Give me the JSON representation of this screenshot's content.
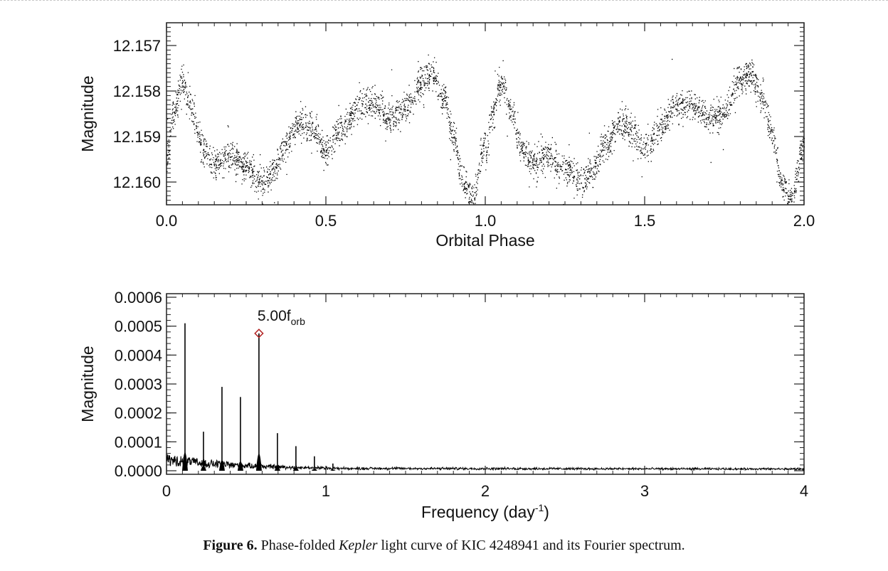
{
  "chart_data": [
    {
      "type": "scatter",
      "title": "",
      "xlabel": "Orbital Phase",
      "ylabel": "Magnitude",
      "xlim": [
        0.0,
        2.0
      ],
      "ylim": [
        12.1605,
        12.1565
      ],
      "y_inverted": true,
      "xticks": [
        "0.0",
        "0.5",
        "1.0",
        "1.5",
        "2.0"
      ],
      "yticks": [
        "12.157",
        "12.158",
        "12.159",
        "12.160"
      ],
      "grid": false,
      "legend": "none",
      "series": [
        {
          "marker_color": "#000000",
          "x": [
            0.0,
            0.02,
            0.05,
            0.08,
            0.11,
            0.15,
            0.2,
            0.25,
            0.3,
            0.34,
            0.38,
            0.42,
            0.45,
            0.5,
            0.55,
            0.6,
            0.65,
            0.7,
            0.75,
            0.8,
            0.83,
            0.87,
            0.9,
            0.93,
            0.96,
            0.99,
            1.0
          ],
          "y": [
            12.1595,
            12.1585,
            12.1578,
            12.1584,
            12.1592,
            12.1596,
            12.1594,
            12.1597,
            12.16,
            12.1597,
            12.1591,
            12.1587,
            12.1588,
            12.1593,
            12.1588,
            12.1583,
            12.1583,
            12.1586,
            12.1584,
            12.1578,
            12.1576,
            12.1581,
            12.159,
            12.16,
            12.1604,
            12.1594,
            12.159
          ]
        }
      ]
    },
    {
      "type": "line",
      "title": "",
      "xlabel": "Frequency (day",
      "xlabel_sup": "-1",
      "xlabel_end": ")",
      "ylabel": "Magnitude",
      "xlim": [
        0,
        4
      ],
      "ylim": [
        0,
        0.0006
      ],
      "xticks": [
        "0",
        "1",
        "2",
        "3",
        "4"
      ],
      "yticks": [
        "0.0000",
        "0.0001",
        "0.0002",
        "0.0003",
        "0.0004",
        "0.0005",
        "0.0006"
      ],
      "grid": false,
      "legend": "none",
      "peaks": [
        {
          "freq": 0.116,
          "amp": 0.00051
        },
        {
          "freq": 0.232,
          "amp": 0.000135
        },
        {
          "freq": 0.348,
          "amp": 0.00029
        },
        {
          "freq": 0.464,
          "amp": 0.000255
        },
        {
          "freq": 0.58,
          "amp": 0.000475
        },
        {
          "freq": 0.696,
          "amp": 0.00013
        },
        {
          "freq": 0.812,
          "amp": 8.5e-05
        },
        {
          "freq": 0.928,
          "amp": 5e-05
        },
        {
          "freq": 1.044,
          "amp": 2.5e-05
        }
      ],
      "annotation": {
        "text": "5.00f",
        "subscript": "orb",
        "freq": 0.58,
        "amp": 0.000475,
        "marker": "diamond",
        "marker_color": "#b22222"
      }
    }
  ],
  "caption": {
    "label": "Figure 6.",
    "text_before": "Phase-folded",
    "italic": "Kepler",
    "text_after": "light curve of KIC 4248941 and its Fourier spectrum."
  }
}
